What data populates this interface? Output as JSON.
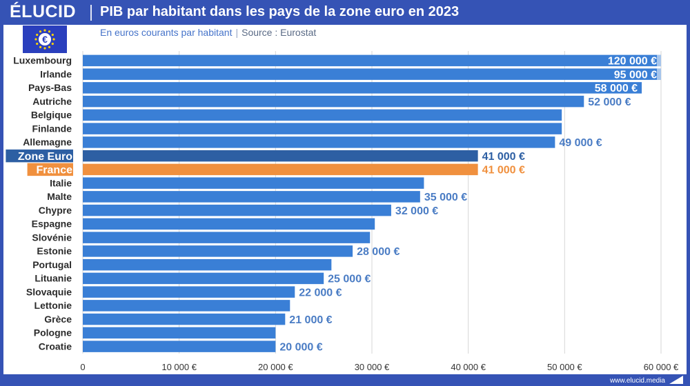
{
  "header": {
    "brand": "ÉLUCID",
    "title": "PIB par habitant dans les pays de la zone euro en 2023"
  },
  "subtitle": {
    "text": "En euros courants par habitant",
    "separator": "|",
    "source": "Source : Eurostat"
  },
  "footer": {
    "url": "www.elucid.media"
  },
  "flag_icon": "eu-flag-euro-icon",
  "colors": {
    "bar": "#3a7fd6",
    "zone_euro": "#2d5fa3",
    "france": "#f0903e",
    "value_text": "#4a7cc4",
    "value_on_bar": "#ffffff",
    "brand_blue": "#3553b5",
    "axis_text": "#333333"
  },
  "chart_data": {
    "type": "bar",
    "orientation": "horizontal",
    "title": "PIB par habitant dans les pays de la zone euro en 2023",
    "subtitle": "En euros courants par habitant",
    "categories": [
      "Luxembourg",
      "Irlande",
      "Pays-Bas",
      "Autriche",
      "Belgique",
      "Finlande",
      "Allemagne",
      "Zone Euro",
      "France",
      "Italie",
      "Malte",
      "Chypre",
      "Espagne",
      "Slovénie",
      "Estonie",
      "Portugal",
      "Lituanie",
      "Slovaquie",
      "Lettonie",
      "Grèce",
      "Pologne",
      "Croatie"
    ],
    "values": [
      120000,
      95000,
      58000,
      52000,
      49700,
      49700,
      49000,
      41000,
      41000,
      35400,
      35000,
      32000,
      30300,
      29800,
      28000,
      25800,
      25000,
      22000,
      21500,
      21000,
      20000,
      20000
    ],
    "value_labels": [
      "120 000 €",
      "95 000 €",
      "58 000 €",
      "52 000 €",
      "",
      "",
      "49 000 €",
      "41 000 €",
      "41 000 €",
      "",
      "35 000 €",
      "32 000 €",
      "",
      "",
      "28 000 €",
      "",
      "25 000 €",
      "22 000 €",
      "",
      "21 000 €",
      "",
      "20 000 €"
    ],
    "highlight": {
      "Zone Euro": "zone_euro",
      "France": "france"
    },
    "xlim": [
      0,
      60000
    ],
    "xticks": [
      0,
      10000,
      20000,
      30000,
      40000,
      50000,
      60000
    ],
    "xtick_labels": [
      "0",
      "10 000 €",
      "20 000 €",
      "30 000 €",
      "40 000 €",
      "50 000 €",
      "60 000 €"
    ],
    "xlabel": "",
    "ylabel": "",
    "grid": true,
    "truncated_bars": [
      "Luxembourg",
      "Irlande"
    ]
  }
}
